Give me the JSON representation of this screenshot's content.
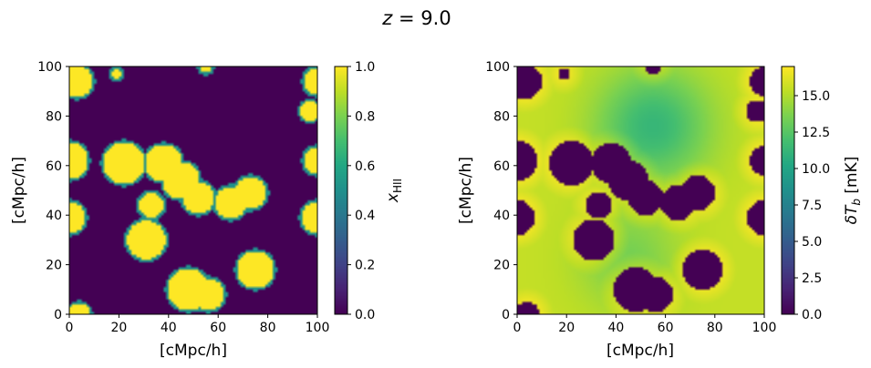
{
  "figure_title": {
    "prefix": "z",
    "equals": " = ",
    "value": "9.0"
  },
  "chart_data": [
    {
      "type": "heatmap",
      "title": "",
      "xlabel": "[cMpc/h]",
      "ylabel": "[cMpc/h]",
      "xlim": [
        0,
        100
      ],
      "ylim": [
        0,
        100
      ],
      "xticks": [
        0,
        20,
        40,
        60,
        80,
        100
      ],
      "yticks": [
        0,
        20,
        40,
        60,
        80,
        100
      ],
      "colorbar": {
        "label": "x",
        "label_sub": "HII",
        "range": [
          0.0,
          1.0
        ],
        "ticks": [
          "0.0",
          "0.2",
          "0.4",
          "0.6",
          "0.8",
          "1.0"
        ],
        "tick_values": [
          0.0,
          0.2,
          0.4,
          0.6,
          0.8,
          1.0
        ],
        "colormap": "viridis"
      },
      "description_values": {
        "ionized": 1.0,
        "neutral": 0.0
      }
    },
    {
      "type": "heatmap",
      "title": "",
      "xlabel": "[cMpc/h]",
      "ylabel": "[cMpc/h]",
      "xlim": [
        0,
        100
      ],
      "ylim": [
        0,
        100
      ],
      "xticks": [
        0,
        20,
        40,
        60,
        80,
        100
      ],
      "yticks": [
        0,
        20,
        40,
        60,
        80,
        100
      ],
      "colorbar": {
        "label": "δT",
        "label_sub": "b",
        "label_unit": " [mK]",
        "range": [
          0.0,
          17.0
        ],
        "ticks": [
          "0.0",
          "2.5",
          "5.0",
          "7.5",
          "10.0",
          "12.5",
          "15.0"
        ],
        "tick_values": [
          0.0,
          2.5,
          5.0,
          7.5,
          10.0,
          12.5,
          15.0
        ],
        "colormap": "viridis"
      }
    }
  ],
  "ionized_regions": [
    {
      "x": 3,
      "y": 94,
      "r": 7
    },
    {
      "x": 19,
      "y": 97,
      "r": 2.5
    },
    {
      "x": 100,
      "y": 94,
      "r": 6
    },
    {
      "x": 97,
      "y": 82,
      "r": 4.5
    },
    {
      "x": 0,
      "y": 62,
      "r": 8
    },
    {
      "x": 22,
      "y": 61,
      "r": 9
    },
    {
      "x": 38,
      "y": 61,
      "r": 8
    },
    {
      "x": 45,
      "y": 54,
      "r": 8
    },
    {
      "x": 52,
      "y": 47,
      "r": 7
    },
    {
      "x": 65,
      "y": 45,
      "r": 7
    },
    {
      "x": 73,
      "y": 49,
      "r": 7
    },
    {
      "x": 100,
      "y": 62,
      "r": 6
    },
    {
      "x": 33,
      "y": 44,
      "r": 5.5
    },
    {
      "x": 0,
      "y": 39,
      "r": 7
    },
    {
      "x": 100,
      "y": 39,
      "r": 7
    },
    {
      "x": 31,
      "y": 30,
      "r": 8.5
    },
    {
      "x": 75,
      "y": 18,
      "r": 8
    },
    {
      "x": 48,
      "y": 10,
      "r": 9
    },
    {
      "x": 56,
      "y": 8,
      "r": 7
    },
    {
      "x": 4,
      "y": 0,
      "r": 5
    },
    {
      "x": 55,
      "y": 100,
      "r": 3
    }
  ]
}
